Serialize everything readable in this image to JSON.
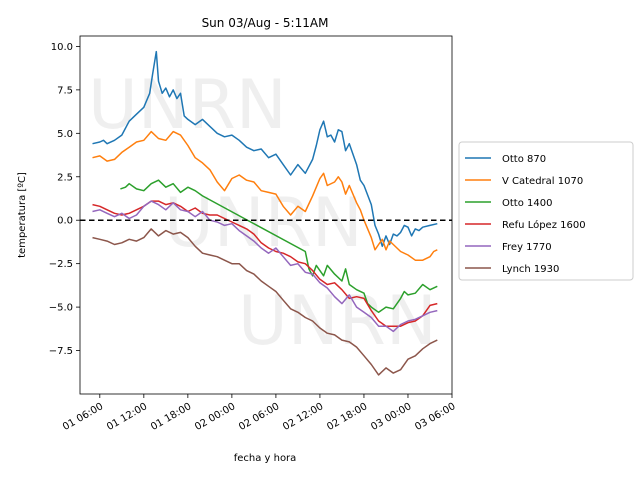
{
  "chart_data": {
    "type": "line",
    "title": "Sun 03/Aug - 5:11AM",
    "xlabel": "fecha y hora",
    "ylabel": "temperatura [ºC]",
    "watermark": "UNRN",
    "x_unit": "hours since 01 00:00",
    "xlim": [
      27.3,
      78.0
    ],
    "ylim": [
      -10.0,
      10.6
    ],
    "yticks": [
      10.0,
      7.5,
      5.0,
      2.5,
      0.0,
      -2.5,
      -5.0,
      -7.5
    ],
    "ytick_labels": [
      "10.0",
      "7.5",
      "5.0",
      "2.5",
      "0.0",
      "−2.5",
      "−5.0",
      "−7.5"
    ],
    "xticks": [
      30,
      36,
      42,
      48,
      54,
      60,
      66,
      72,
      78
    ],
    "xtick_labels": [
      "01 06:00",
      "01 12:00",
      "01 18:00",
      "02 00:00",
      "02 06:00",
      "02 12:00",
      "02 18:00",
      "03 00:00",
      "03 06:00"
    ],
    "zero_line": 0,
    "legend_position": "right",
    "series": [
      {
        "name": "Otto 870",
        "color": "#1f77b4",
        "points": [
          [
            29,
            4.4
          ],
          [
            30,
            4.5
          ],
          [
            30.5,
            4.6
          ],
          [
            31,
            4.4
          ],
          [
            32,
            4.6
          ],
          [
            33,
            4.9
          ],
          [
            34,
            5.7
          ],
          [
            35,
            6.1
          ],
          [
            36,
            6.5
          ],
          [
            36.8,
            7.3
          ],
          [
            37.2,
            8.4
          ],
          [
            37.7,
            9.7
          ],
          [
            38,
            8.0
          ],
          [
            38.5,
            7.3
          ],
          [
            39,
            7.6
          ],
          [
            39.5,
            7.1
          ],
          [
            40,
            7.5
          ],
          [
            40.5,
            7.0
          ],
          [
            41,
            7.3
          ],
          [
            41.5,
            6.0
          ],
          [
            42,
            5.8
          ],
          [
            43,
            5.5
          ],
          [
            44,
            5.8
          ],
          [
            45,
            5.4
          ],
          [
            46,
            5.0
          ],
          [
            47,
            4.8
          ],
          [
            48,
            4.9
          ],
          [
            49,
            4.6
          ],
          [
            50,
            4.2
          ],
          [
            51,
            4.0
          ],
          [
            52,
            4.1
          ],
          [
            53,
            3.6
          ],
          [
            54,
            3.8
          ],
          [
            55,
            3.2
          ],
          [
            56,
            2.6
          ],
          [
            57,
            3.2
          ],
          [
            58,
            2.7
          ],
          [
            59,
            3.5
          ],
          [
            59.5,
            4.3
          ],
          [
            60,
            5.2
          ],
          [
            60.5,
            5.7
          ],
          [
            61,
            4.8
          ],
          [
            61.5,
            4.9
          ],
          [
            62,
            4.5
          ],
          [
            62.5,
            5.2
          ],
          [
            63,
            5.1
          ],
          [
            63.5,
            4.0
          ],
          [
            64,
            4.4
          ],
          [
            65,
            3.2
          ],
          [
            65.5,
            2.3
          ],
          [
            66,
            2.0
          ],
          [
            67,
            0.9
          ],
          [
            67.5,
            -0.3
          ],
          [
            68,
            -0.8
          ],
          [
            68.5,
            -1.5
          ],
          [
            69,
            -0.9
          ],
          [
            69.5,
            -1.4
          ],
          [
            70,
            -0.8
          ],
          [
            70.5,
            -0.9
          ],
          [
            71,
            -0.7
          ],
          [
            71.5,
            -0.3
          ],
          [
            72,
            -0.4
          ],
          [
            72.5,
            -0.9
          ],
          [
            73,
            -0.5
          ],
          [
            73.5,
            -0.6
          ],
          [
            74,
            -0.4
          ],
          [
            75,
            -0.3
          ],
          [
            76,
            -0.2
          ]
        ]
      },
      {
        "name": "V Catedral 1070",
        "color": "#ff7f0e",
        "points": [
          [
            29,
            3.6
          ],
          [
            30,
            3.7
          ],
          [
            31,
            3.4
          ],
          [
            32,
            3.5
          ],
          [
            33,
            3.9
          ],
          [
            34,
            4.2
          ],
          [
            35,
            4.5
          ],
          [
            36,
            4.6
          ],
          [
            37,
            5.1
          ],
          [
            38,
            4.7
          ],
          [
            39,
            4.6
          ],
          [
            40,
            5.1
          ],
          [
            41,
            4.9
          ],
          [
            42,
            4.3
          ],
          [
            43,
            3.6
          ],
          [
            44,
            3.3
          ],
          [
            45,
            2.9
          ],
          [
            46,
            2.2
          ],
          [
            47,
            1.7
          ],
          [
            48,
            2.4
          ],
          [
            49,
            2.6
          ],
          [
            50,
            2.3
          ],
          [
            51,
            2.2
          ],
          [
            52,
            1.7
          ],
          [
            53,
            1.6
          ],
          [
            54,
            1.5
          ],
          [
            55,
            0.8
          ],
          [
            56,
            0.3
          ],
          [
            57,
            0.8
          ],
          [
            58,
            0.5
          ],
          [
            59,
            1.4
          ],
          [
            60,
            2.4
          ],
          [
            60.5,
            2.7
          ],
          [
            61,
            2.0
          ],
          [
            62,
            2.2
          ],
          [
            62.5,
            2.5
          ],
          [
            63,
            2.2
          ],
          [
            63.5,
            1.5
          ],
          [
            64,
            2.0
          ],
          [
            65,
            1.0
          ],
          [
            65.5,
            0.6
          ],
          [
            66,
            0.0
          ],
          [
            67,
            -1.0
          ],
          [
            67.5,
            -1.7
          ],
          [
            68,
            -1.4
          ],
          [
            68.5,
            -1.1
          ],
          [
            69,
            -1.7
          ],
          [
            69.5,
            -1.2
          ],
          [
            70,
            -1.4
          ],
          [
            71,
            -1.8
          ],
          [
            72,
            -2.0
          ],
          [
            73,
            -2.3
          ],
          [
            74,
            -2.3
          ],
          [
            75,
            -2.1
          ],
          [
            75.5,
            -1.8
          ],
          [
            76,
            -1.7
          ]
        ]
      },
      {
        "name": "Otto 1400",
        "color": "#2ca02c",
        "points": [
          [
            32.8,
            1.8
          ],
          [
            33.5,
            1.9
          ],
          [
            34,
            2.1
          ],
          [
            35,
            1.8
          ],
          [
            36,
            1.7
          ],
          [
            37,
            2.1
          ],
          [
            38,
            2.3
          ],
          [
            39,
            1.9
          ],
          [
            40,
            2.1
          ],
          [
            41,
            1.6
          ],
          [
            42,
            1.9
          ],
          [
            43,
            1.7
          ],
          [
            44,
            1.4
          ],
          [
            58,
            -1.8
          ],
          [
            58.5,
            -2.8
          ],
          [
            59,
            -3.2
          ],
          [
            59.5,
            -2.6
          ],
          [
            60,
            -2.9
          ],
          [
            60.5,
            -3.2
          ],
          [
            61,
            -2.6
          ],
          [
            62,
            -3.1
          ],
          [
            63,
            -3.5
          ],
          [
            63.5,
            -2.8
          ],
          [
            64,
            -3.7
          ],
          [
            65,
            -4.0
          ],
          [
            66,
            -4.2
          ],
          [
            66.5,
            -4.8
          ],
          [
            67,
            -5.0
          ],
          [
            68,
            -5.3
          ],
          [
            69,
            -5.0
          ],
          [
            70,
            -5.1
          ],
          [
            71,
            -4.5
          ],
          [
            71.5,
            -4.1
          ],
          [
            72,
            -4.3
          ],
          [
            73,
            -4.2
          ],
          [
            74,
            -3.7
          ],
          [
            75,
            -4.0
          ],
          [
            76,
            -3.8
          ]
        ]
      },
      {
        "name": "Refu López 1600",
        "color": "#d62728",
        "points": [
          [
            29,
            0.9
          ],
          [
            30,
            0.8
          ],
          [
            31,
            0.6
          ],
          [
            32,
            0.4
          ],
          [
            33,
            0.3
          ],
          [
            34,
            0.4
          ],
          [
            35,
            0.6
          ],
          [
            36,
            0.8
          ],
          [
            37,
            1.1
          ],
          [
            38,
            1.1
          ],
          [
            39,
            0.9
          ],
          [
            40,
            1.0
          ],
          [
            41,
            0.8
          ],
          [
            42,
            0.5
          ],
          [
            43,
            0.7
          ],
          [
            44,
            0.4
          ],
          [
            45,
            0.3
          ],
          [
            46,
            0.3
          ],
          [
            47,
            0.1
          ],
          [
            48,
            -0.1
          ],
          [
            49,
            -0.3
          ],
          [
            50,
            -0.5
          ],
          [
            51,
            -0.8
          ],
          [
            52,
            -1.3
          ],
          [
            53,
            -1.6
          ],
          [
            54,
            -1.8
          ],
          [
            55,
            -1.9
          ],
          [
            56,
            -2.1
          ],
          [
            57,
            -2.4
          ],
          [
            58,
            -2.5
          ],
          [
            59,
            -2.9
          ],
          [
            60,
            -3.4
          ],
          [
            61,
            -3.7
          ],
          [
            62,
            -3.6
          ],
          [
            63,
            -4.0
          ],
          [
            64,
            -4.5
          ],
          [
            65,
            -4.4
          ],
          [
            66,
            -4.5
          ],
          [
            67,
            -5.2
          ],
          [
            68,
            -5.8
          ],
          [
            69,
            -6.1
          ],
          [
            70,
            -6.1
          ],
          [
            71,
            -6.1
          ],
          [
            72,
            -5.9
          ],
          [
            73,
            -5.8
          ],
          [
            74,
            -5.5
          ],
          [
            75,
            -4.9
          ],
          [
            76,
            -4.8
          ]
        ]
      },
      {
        "name": "Frey 1770",
        "color": "#9467bd",
        "points": [
          [
            29,
            0.5
          ],
          [
            30,
            0.6
          ],
          [
            31,
            0.4
          ],
          [
            32,
            0.2
          ],
          [
            33,
            0.4
          ],
          [
            34,
            0.1
          ],
          [
            35,
            0.3
          ],
          [
            36,
            0.8
          ],
          [
            37,
            1.1
          ],
          [
            38,
            0.9
          ],
          [
            39,
            0.6
          ],
          [
            40,
            1.0
          ],
          [
            41,
            0.6
          ],
          [
            42,
            0.5
          ],
          [
            43,
            0.2
          ],
          [
            44,
            0.5
          ],
          [
            45,
            0.0
          ],
          [
            46,
            -0.1
          ],
          [
            47,
            -0.3
          ],
          [
            48,
            -0.2
          ],
          [
            49,
            -0.6
          ],
          [
            50,
            -0.9
          ],
          [
            51,
            -1.2
          ],
          [
            52,
            -1.6
          ],
          [
            53,
            -1.9
          ],
          [
            54,
            -1.6
          ],
          [
            55,
            -2.1
          ],
          [
            56,
            -2.6
          ],
          [
            57,
            -2.5
          ],
          [
            58,
            -3.0
          ],
          [
            59,
            -3.1
          ],
          [
            60,
            -3.6
          ],
          [
            61,
            -3.9
          ],
          [
            62,
            -4.4
          ],
          [
            63,
            -4.8
          ],
          [
            64,
            -4.3
          ],
          [
            65,
            -5.0
          ],
          [
            66,
            -5.3
          ],
          [
            67,
            -5.6
          ],
          [
            68,
            -6.1
          ],
          [
            69,
            -6.1
          ],
          [
            70,
            -6.4
          ],
          [
            71,
            -6.0
          ],
          [
            72,
            -5.8
          ],
          [
            73,
            -5.7
          ],
          [
            74,
            -5.5
          ],
          [
            75,
            -5.3
          ],
          [
            76,
            -5.2
          ]
        ]
      },
      {
        "name": "Lynch 1930",
        "color": "#8c564b",
        "points": [
          [
            29,
            -1.0
          ],
          [
            30,
            -1.1
          ],
          [
            31,
            -1.2
          ],
          [
            32,
            -1.4
          ],
          [
            33,
            -1.3
          ],
          [
            34,
            -1.1
          ],
          [
            35,
            -1.2
          ],
          [
            36,
            -1.0
          ],
          [
            37,
            -0.5
          ],
          [
            38,
            -0.9
          ],
          [
            39,
            -0.6
          ],
          [
            40,
            -0.8
          ],
          [
            41,
            -0.7
          ],
          [
            42,
            -1.0
          ],
          [
            43,
            -1.5
          ],
          [
            44,
            -1.9
          ],
          [
            45,
            -2.0
          ],
          [
            46,
            -2.1
          ],
          [
            47,
            -2.3
          ],
          [
            48,
            -2.5
          ],
          [
            49,
            -2.5
          ],
          [
            50,
            -2.9
          ],
          [
            51,
            -3.1
          ],
          [
            52,
            -3.5
          ],
          [
            53,
            -3.8
          ],
          [
            54,
            -4.1
          ],
          [
            55,
            -4.6
          ],
          [
            56,
            -5.1
          ],
          [
            57,
            -5.3
          ],
          [
            58,
            -5.6
          ],
          [
            59,
            -5.8
          ],
          [
            60,
            -6.2
          ],
          [
            61,
            -6.5
          ],
          [
            62,
            -6.6
          ],
          [
            63,
            -6.9
          ],
          [
            64,
            -7.0
          ],
          [
            65,
            -7.3
          ],
          [
            66,
            -7.8
          ],
          [
            67,
            -8.3
          ],
          [
            68,
            -8.9
          ],
          [
            69,
            -8.5
          ],
          [
            70,
            -8.8
          ],
          [
            71,
            -8.6
          ],
          [
            72,
            -8.0
          ],
          [
            73,
            -7.8
          ],
          [
            74,
            -7.4
          ],
          [
            75,
            -7.1
          ],
          [
            76,
            -6.9
          ]
        ]
      }
    ]
  }
}
